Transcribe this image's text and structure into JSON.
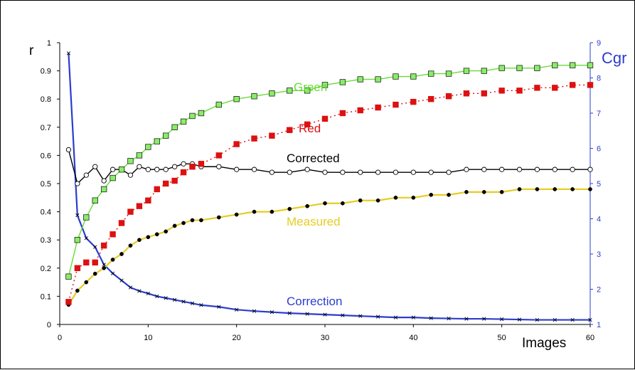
{
  "chart_data": {
    "type": "line",
    "xlabel": "Images",
    "ylabel": "r",
    "y2label": "Cgr",
    "xlim": [
      0,
      60
    ],
    "ylim": [
      0,
      1
    ],
    "y2lim": [
      1,
      9
    ],
    "xticks": [
      0,
      10,
      20,
      30,
      40,
      50,
      60
    ],
    "yticks": [
      0,
      0.1,
      0.2,
      0.3,
      0.4,
      0.5,
      0.6,
      0.7,
      0.8,
      0.9,
      1
    ],
    "y2ticks": [
      1,
      2,
      3,
      4,
      5,
      6,
      7,
      8,
      9
    ],
    "grid": false,
    "axis_color": "#000000",
    "y2_axis_color": "#2b3ccf",
    "series": [
      {
        "name": "Green",
        "axis": "left",
        "color": "#66dd33",
        "marker": "square",
        "marker_fill": "#88ee66",
        "line_style": "solid",
        "x": [
          1,
          2,
          3,
          4,
          5,
          6,
          7,
          8,
          9,
          10,
          11,
          12,
          13,
          14,
          15,
          16,
          18,
          20,
          22,
          24,
          26,
          28,
          30,
          32,
          34,
          36,
          38,
          40,
          42,
          44,
          46,
          48,
          50,
          52,
          54,
          56,
          58,
          60
        ],
        "y": [
          0.17,
          0.3,
          0.38,
          0.44,
          0.48,
          0.52,
          0.55,
          0.58,
          0.6,
          0.63,
          0.65,
          0.67,
          0.7,
          0.72,
          0.74,
          0.75,
          0.78,
          0.8,
          0.81,
          0.82,
          0.83,
          0.83,
          0.85,
          0.86,
          0.87,
          0.87,
          0.88,
          0.88,
          0.89,
          0.89,
          0.9,
          0.9,
          0.91,
          0.91,
          0.91,
          0.92,
          0.92,
          0.92
        ]
      },
      {
        "name": "Red",
        "axis": "left",
        "color": "#dd1111",
        "marker": "square",
        "marker_fill": "#dd1111",
        "line_style": "dotted",
        "x": [
          1,
          2,
          3,
          4,
          5,
          6,
          7,
          8,
          9,
          10,
          11,
          12,
          13,
          14,
          15,
          16,
          18,
          20,
          22,
          24,
          26,
          28,
          30,
          32,
          34,
          36,
          38,
          40,
          42,
          44,
          46,
          48,
          50,
          52,
          54,
          56,
          58,
          60
        ],
        "y": [
          0.08,
          0.2,
          0.22,
          0.22,
          0.28,
          0.32,
          0.36,
          0.4,
          0.42,
          0.44,
          0.48,
          0.5,
          0.51,
          0.54,
          0.56,
          0.57,
          0.6,
          0.64,
          0.66,
          0.67,
          0.69,
          0.71,
          0.73,
          0.75,
          0.76,
          0.77,
          0.78,
          0.79,
          0.8,
          0.81,
          0.82,
          0.82,
          0.83,
          0.83,
          0.84,
          0.84,
          0.85,
          0.85
        ]
      },
      {
        "name": "Corrected",
        "axis": "left",
        "color": "#000000",
        "marker": "circle",
        "marker_fill": "#ffffff",
        "line_style": "solid",
        "x": [
          1,
          2,
          3,
          4,
          5,
          6,
          7,
          8,
          9,
          10,
          11,
          12,
          13,
          14,
          15,
          16,
          18,
          20,
          22,
          24,
          26,
          28,
          30,
          32,
          34,
          36,
          38,
          40,
          42,
          44,
          46,
          48,
          50,
          52,
          54,
          56,
          58,
          60
        ],
        "y": [
          0.62,
          0.5,
          0.53,
          0.56,
          0.51,
          0.55,
          0.55,
          0.53,
          0.56,
          0.55,
          0.55,
          0.55,
          0.56,
          0.57,
          0.57,
          0.56,
          0.56,
          0.55,
          0.55,
          0.54,
          0.54,
          0.55,
          0.54,
          0.54,
          0.54,
          0.54,
          0.54,
          0.54,
          0.54,
          0.54,
          0.55,
          0.55,
          0.55,
          0.55,
          0.55,
          0.55,
          0.55,
          0.55
        ]
      },
      {
        "name": "Measured",
        "axis": "left",
        "color": "#e6cc22",
        "marker": "circle",
        "marker_fill": "#000000",
        "line_style": "solid",
        "x": [
          1,
          2,
          3,
          4,
          5,
          6,
          7,
          8,
          9,
          10,
          11,
          12,
          13,
          14,
          15,
          16,
          18,
          20,
          22,
          24,
          26,
          28,
          30,
          32,
          34,
          36,
          38,
          40,
          42,
          44,
          46,
          48,
          50,
          52,
          54,
          56,
          58,
          60
        ],
        "y": [
          0.07,
          0.12,
          0.15,
          0.18,
          0.2,
          0.23,
          0.25,
          0.28,
          0.3,
          0.31,
          0.32,
          0.33,
          0.35,
          0.36,
          0.37,
          0.37,
          0.38,
          0.39,
          0.4,
          0.4,
          0.41,
          0.42,
          0.43,
          0.43,
          0.44,
          0.44,
          0.45,
          0.45,
          0.46,
          0.46,
          0.47,
          0.47,
          0.47,
          0.48,
          0.48,
          0.48,
          0.48,
          0.48
        ]
      },
      {
        "name": "Correction",
        "axis": "right",
        "color": "#2b3ccf",
        "marker": "x",
        "marker_fill": "#000000",
        "line_style": "solid",
        "x": [
          1,
          2,
          3,
          4,
          5,
          6,
          7,
          8,
          9,
          10,
          11,
          12,
          13,
          14,
          15,
          16,
          18,
          20,
          22,
          24,
          26,
          28,
          30,
          32,
          34,
          36,
          38,
          40,
          42,
          44,
          46,
          48,
          50,
          52,
          54,
          56,
          58,
          60
        ],
        "y": [
          8.7,
          4.1,
          3.45,
          3.2,
          2.7,
          2.45,
          2.25,
          2.05,
          1.95,
          1.88,
          1.8,
          1.75,
          1.7,
          1.65,
          1.6,
          1.55,
          1.5,
          1.42,
          1.38,
          1.35,
          1.32,
          1.3,
          1.28,
          1.26,
          1.24,
          1.22,
          1.2,
          1.2,
          1.18,
          1.17,
          1.16,
          1.16,
          1.15,
          1.14,
          1.13,
          1.13,
          1.13,
          1.13
        ]
      }
    ],
    "annotations": [
      {
        "text": "Green",
        "series": "Green"
      },
      {
        "text": "Red",
        "series": "Red"
      },
      {
        "text": "Corrected",
        "series": "Corrected"
      },
      {
        "text": "Measured",
        "series": "Measured"
      },
      {
        "text": "Correction",
        "series": "Correction"
      }
    ]
  }
}
